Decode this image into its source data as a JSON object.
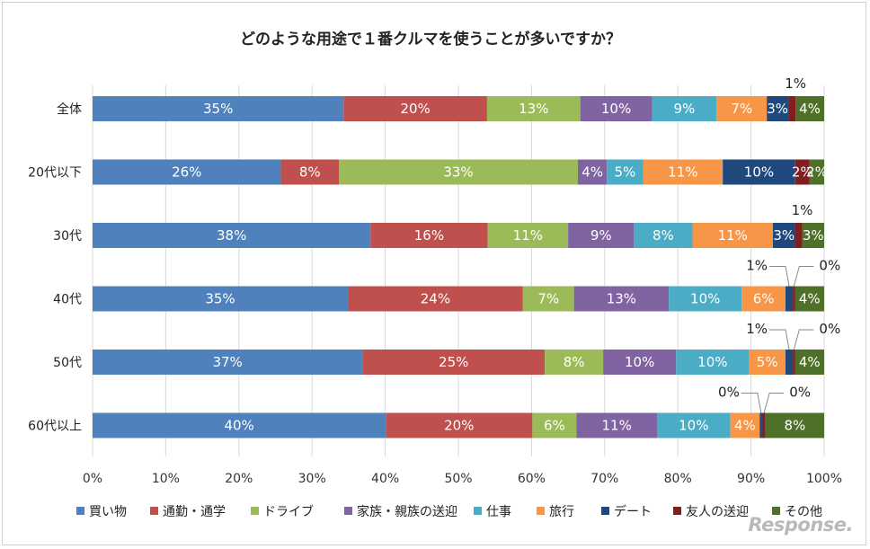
{
  "chart_data": {
    "type": "bar",
    "orientation": "horizontal",
    "stacked": true,
    "title": "どのような用途で１番クルマを使うことが多いですか？",
    "categories": [
      "全体",
      "20代以下",
      "30代",
      "40代",
      "50代",
      "60代以上"
    ],
    "xlim": [
      0,
      100
    ],
    "xticks": [
      "0%",
      "10%",
      "20%",
      "30%",
      "40%",
      "50%",
      "60%",
      "70%",
      "80%",
      "90%",
      "100%"
    ],
    "grid": true,
    "legend_position": "bottom",
    "series": [
      {
        "name": "買い物",
        "color": "#4f81bd",
        "values": [
          35,
          26,
          38,
          35,
          37,
          40
        ],
        "labels": [
          "35%",
          "26%",
          "38%",
          "35%",
          "37%",
          "40%"
        ]
      },
      {
        "name": "通勤・通学",
        "color": "#c0504d",
        "values": [
          20,
          8,
          16,
          24,
          25,
          20
        ],
        "labels": [
          "20%",
          "8%",
          "16%",
          "24%",
          "25%",
          "20%"
        ]
      },
      {
        "name": "ドライブ",
        "color": "#9bbb59",
        "values": [
          13,
          33,
          11,
          7,
          8,
          6
        ],
        "labels": [
          "13%",
          "33%",
          "11%",
          "7%",
          "8%",
          "6%"
        ]
      },
      {
        "name": "家族・親族の送迎",
        "color": "#8064a2",
        "values": [
          10,
          4,
          9,
          13,
          10,
          11
        ],
        "labels": [
          "10%",
          "4%",
          "9%",
          "13%",
          "10%",
          "11%"
        ]
      },
      {
        "name": "仕事",
        "color": "#4bacc6",
        "values": [
          9,
          5,
          8,
          10,
          10,
          10
        ],
        "labels": [
          "9%",
          "5%",
          "8%",
          "10%",
          "10%",
          "10%"
        ]
      },
      {
        "name": "旅行",
        "color": "#f79646",
        "values": [
          7,
          11,
          11,
          6,
          5,
          4
        ],
        "labels": [
          "7%",
          "11%",
          "11%",
          "6%",
          "5%",
          "4%"
        ]
      },
      {
        "name": "デート",
        "color": "#1f497d",
        "values": [
          3,
          10,
          3,
          1,
          1,
          0.4
        ],
        "labels": [
          "3%",
          "10%",
          "3%",
          "1%",
          "1%",
          "0%"
        ]
      },
      {
        "name": "友人の送迎",
        "color": "#7f1f1f",
        "values": [
          1,
          2,
          1,
          0.3,
          0.3,
          0.4
        ],
        "labels": [
          "1%",
          "2%",
          "1%",
          "0%",
          "0%",
          "0%"
        ]
      },
      {
        "name": "その他",
        "color": "#4f7029",
        "values": [
          4,
          2,
          3,
          4,
          4,
          8
        ],
        "labels": [
          "4%",
          "2%",
          "3%",
          "4%",
          "4%",
          "8%"
        ]
      }
    ]
  },
  "watermark": "Response."
}
